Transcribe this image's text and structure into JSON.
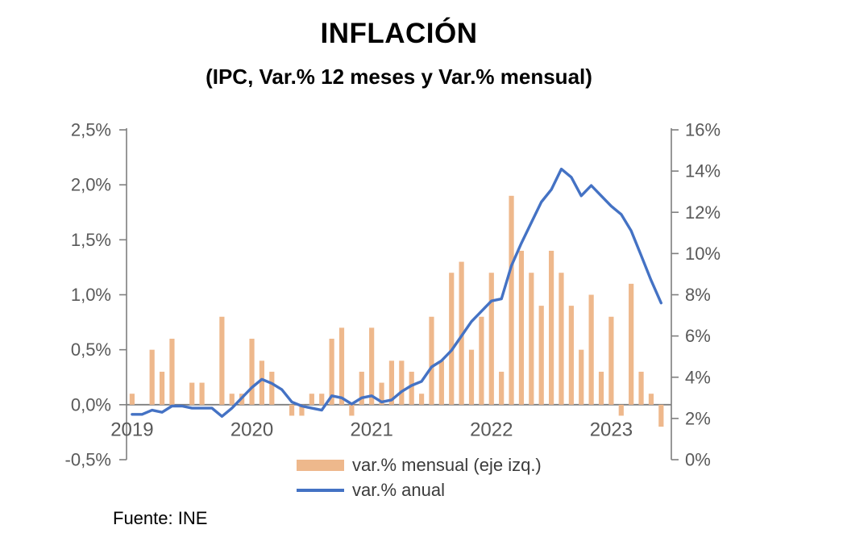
{
  "footer": {
    "source": "Fuente: INE"
  },
  "chart_data": {
    "type": "bar",
    "combo": "bar+line",
    "title": "INFLACIÓN",
    "subtitle": "(IPC, Var.% 12 meses y Var.% mensual)",
    "months": [
      "2019-01",
      "2019-02",
      "2019-03",
      "2019-04",
      "2019-05",
      "2019-06",
      "2019-07",
      "2019-08",
      "2019-09",
      "2019-10",
      "2019-11",
      "2019-12",
      "2020-01",
      "2020-02",
      "2020-03",
      "2020-04",
      "2020-05",
      "2020-06",
      "2020-07",
      "2020-08",
      "2020-09",
      "2020-10",
      "2020-11",
      "2020-12",
      "2021-01",
      "2021-02",
      "2021-03",
      "2021-04",
      "2021-05",
      "2021-06",
      "2021-07",
      "2021-08",
      "2021-09",
      "2021-10",
      "2021-11",
      "2021-12",
      "2022-01",
      "2022-02",
      "2022-03",
      "2022-04",
      "2022-05",
      "2022-06",
      "2022-07",
      "2022-08",
      "2022-09",
      "2022-10",
      "2022-11",
      "2022-12",
      "2023-01",
      "2023-02",
      "2023-03",
      "2023-04",
      "2023-05",
      "2023-06"
    ],
    "series": [
      {
        "name": "var.% mensual (eje izq.)",
        "kind": "bar",
        "axis": "left",
        "color": "#EEB88C",
        "values": [
          0.1,
          0.0,
          0.5,
          0.3,
          0.6,
          0.0,
          0.2,
          0.2,
          0.0,
          0.8,
          0.1,
          0.1,
          0.6,
          0.4,
          0.3,
          0.0,
          -0.1,
          -0.1,
          0.1,
          0.1,
          0.6,
          0.7,
          -0.1,
          0.3,
          0.7,
          0.2,
          0.4,
          0.4,
          0.3,
          0.1,
          0.8,
          0.4,
          1.2,
          1.3,
          0.5,
          0.8,
          1.2,
          0.3,
          1.9,
          1.4,
          1.2,
          0.9,
          1.4,
          1.2,
          0.9,
          0.5,
          1.0,
          0.3,
          0.8,
          -0.1,
          1.1,
          0.3,
          0.1,
          -0.2
        ]
      },
      {
        "name": "var.% anual",
        "kind": "line",
        "axis": "right",
        "color": "#4472C4",
        "values": [
          2.2,
          2.2,
          2.4,
          2.3,
          2.6,
          2.6,
          2.5,
          2.5,
          2.5,
          2.1,
          2.5,
          3.0,
          3.5,
          3.9,
          3.7,
          3.4,
          2.8,
          2.6,
          2.5,
          2.4,
          3.1,
          3.0,
          2.7,
          3.0,
          3.1,
          2.8,
          2.9,
          3.3,
          3.6,
          3.8,
          4.5,
          4.8,
          5.3,
          6.0,
          6.7,
          7.2,
          7.7,
          7.8,
          9.4,
          10.5,
          11.5,
          12.5,
          13.1,
          14.1,
          13.7,
          12.8,
          13.3,
          12.8,
          12.3,
          11.9,
          11.1,
          9.9,
          8.7,
          7.6
        ]
      }
    ],
    "left_axis": {
      "min": -0.5,
      "max": 2.5,
      "tick_labels": [
        "2,5%",
        "2,0%",
        "1,5%",
        "1,0%",
        "0,5%",
        "0,0%",
        "-0,5%"
      ],
      "tick_values": [
        2.5,
        2.0,
        1.5,
        1.0,
        0.5,
        0.0,
        -0.5
      ]
    },
    "right_axis": {
      "min": 0,
      "max": 16,
      "tick_labels": [
        "16%",
        "14%",
        "12%",
        "10%",
        "8%",
        "6%",
        "4%",
        "2%",
        "0%"
      ],
      "tick_values": [
        16,
        14,
        12,
        10,
        8,
        6,
        4,
        2,
        0
      ]
    },
    "x_axis": {
      "year_labels": [
        "2019",
        "2020",
        "2021",
        "2022",
        "2023"
      ]
    },
    "style": {
      "axis_color": "#7F7F7F",
      "tick_text_color": "#595959",
      "grid": "off",
      "legend_position": "bottom"
    }
  }
}
